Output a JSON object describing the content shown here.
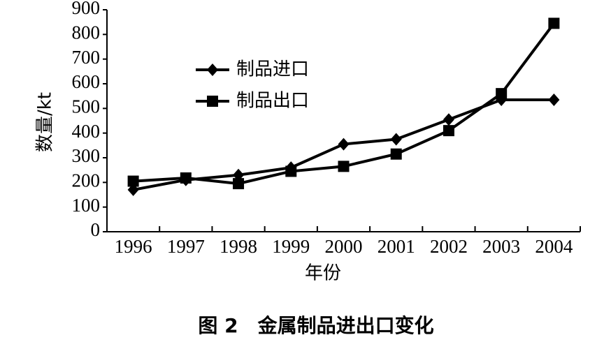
{
  "chart_data": {
    "type": "line",
    "title": "图 2　金属制品进出口变化",
    "x_label": "年份",
    "y_label": "数量/kt",
    "categories": [
      "1996",
      "1997",
      "1998",
      "1999",
      "2000",
      "2001",
      "2002",
      "2003",
      "2004"
    ],
    "series": [
      {
        "name": "制品进口",
        "color": "#000000",
        "marker": "diamond",
        "values": [
          170,
          210,
          230,
          260,
          355,
          375,
          455,
          535,
          535
        ]
      },
      {
        "name": "制品出口",
        "color": "#000000",
        "marker": "square",
        "values": [
          205,
          218,
          195,
          245,
          265,
          315,
          410,
          560,
          845
        ]
      }
    ],
    "ylim": [
      0,
      900
    ],
    "yticks": [
      0,
      100,
      200,
      300,
      400,
      500,
      600,
      700,
      800,
      900
    ],
    "grid": false,
    "legend": "upper left"
  }
}
